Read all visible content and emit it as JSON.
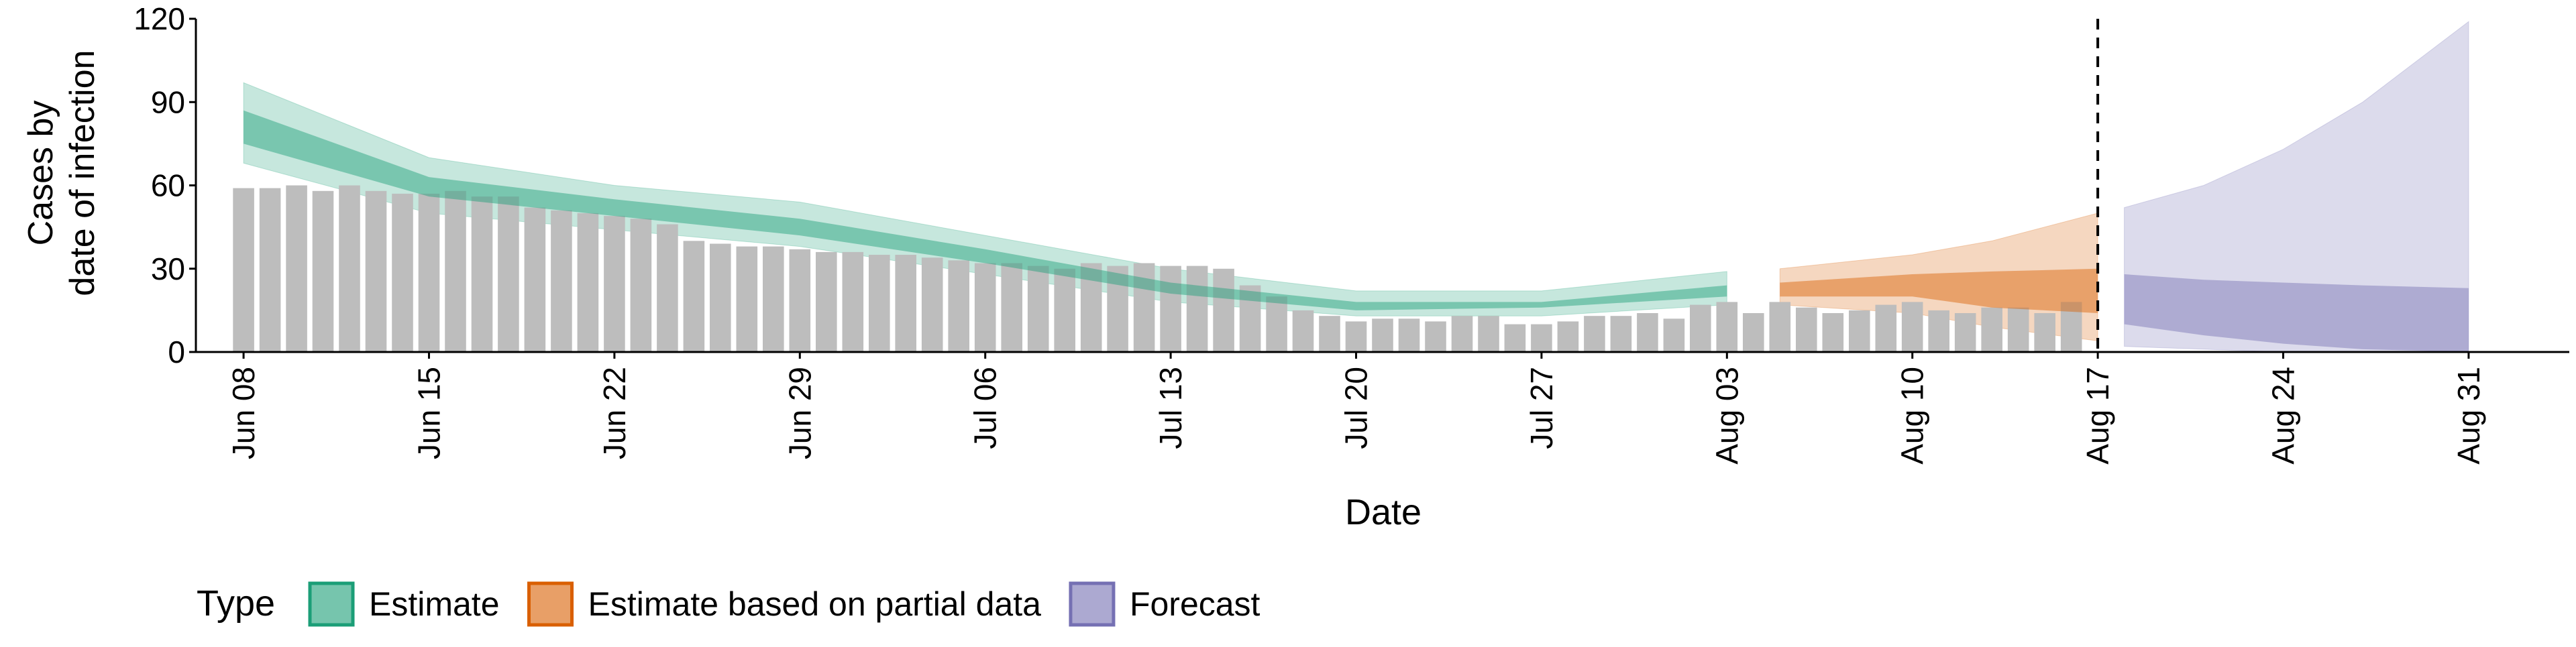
{
  "chart_data": {
    "type": "bar",
    "title": "",
    "xlabel": "Date",
    "ylabel_line1": "Cases by",
    "ylabel_line2": "date of infection",
    "ylim": [
      0,
      120
    ],
    "yticks": [
      0,
      30,
      60,
      90,
      120
    ],
    "xlim": [
      -1.8,
      87.8
    ],
    "x_ticks": [
      {
        "pos": 0,
        "label": "Jun 08"
      },
      {
        "pos": 7,
        "label": "Jun 15"
      },
      {
        "pos": 14,
        "label": "Jun 22"
      },
      {
        "pos": 21,
        "label": "Jun 29"
      },
      {
        "pos": 28,
        "label": "Jul 06"
      },
      {
        "pos": 35,
        "label": "Jul 13"
      },
      {
        "pos": 42,
        "label": "Jul 20"
      },
      {
        "pos": 49,
        "label": "Jul 27"
      },
      {
        "pos": 56,
        "label": "Aug 03"
      },
      {
        "pos": 63,
        "label": "Aug 10"
      },
      {
        "pos": 70,
        "label": "Aug 17"
      },
      {
        "pos": 77,
        "label": "Aug 24"
      },
      {
        "pos": 84,
        "label": "Aug 31"
      }
    ],
    "vline_date_index": 70,
    "bars_start_date": "Jun 08",
    "bars": [
      59,
      59,
      60,
      58,
      60,
      58,
      57,
      57,
      58,
      56,
      56,
      52,
      51,
      50,
      49,
      48,
      46,
      40,
      39,
      38,
      38,
      37,
      36,
      36,
      35,
      35,
      34,
      33,
      32,
      32,
      31,
      30,
      32,
      31,
      32,
      31,
      31,
      30,
      24,
      20,
      15,
      13,
      11,
      12,
      12,
      11,
      13,
      13,
      10,
      10,
      11,
      13,
      13,
      14,
      12,
      17,
      18,
      14,
      18,
      16,
      14,
      15,
      17,
      18,
      15,
      14,
      16,
      16,
      14,
      18
    ],
    "legend": {
      "title": "Type",
      "items": [
        {
          "label": "Estimate",
          "color": "#1B9E77"
        },
        {
          "label": "Estimate based on partial data",
          "color": "#D95F02"
        },
        {
          "label": "Forecast",
          "color": "#7570B3"
        }
      ]
    },
    "series": [
      {
        "name": "Estimate",
        "color": "#1B9E77",
        "x": [
          0,
          7,
          14,
          21,
          28,
          35,
          42,
          49,
          56
        ],
        "outer_upper": [
          97,
          70,
          60,
          54,
          42,
          30,
          22,
          22,
          29
        ],
        "inner_upper": [
          87,
          63,
          55,
          48,
          37,
          25,
          18,
          18,
          24
        ],
        "inner_lower": [
          75,
          56,
          49,
          42,
          32,
          21,
          15,
          16,
          20
        ],
        "outer_lower": [
          68,
          50,
          44,
          38,
          28,
          18,
          13,
          13,
          17
        ]
      },
      {
        "name": "Estimate based on partial data",
        "color": "#D95F02",
        "x": [
          58,
          63,
          66,
          70
        ],
        "outer_upper": [
          30,
          35,
          40,
          50
        ],
        "inner_upper": [
          25,
          28,
          29,
          30
        ],
        "inner_lower": [
          20,
          20,
          16,
          14
        ],
        "outer_lower": [
          17,
          14,
          9,
          4
        ]
      },
      {
        "name": "Forecast",
        "color": "#7570B3",
        "x": [
          71,
          74,
          77,
          80,
          84
        ],
        "outer_upper": [
          52,
          60,
          73,
          90,
          119
        ],
        "inner_upper": [
          28,
          26,
          25,
          24,
          23
        ],
        "inner_lower": [
          10,
          6,
          3,
          1,
          0
        ],
        "outer_lower": [
          2,
          1,
          0,
          0,
          0
        ]
      }
    ]
  }
}
